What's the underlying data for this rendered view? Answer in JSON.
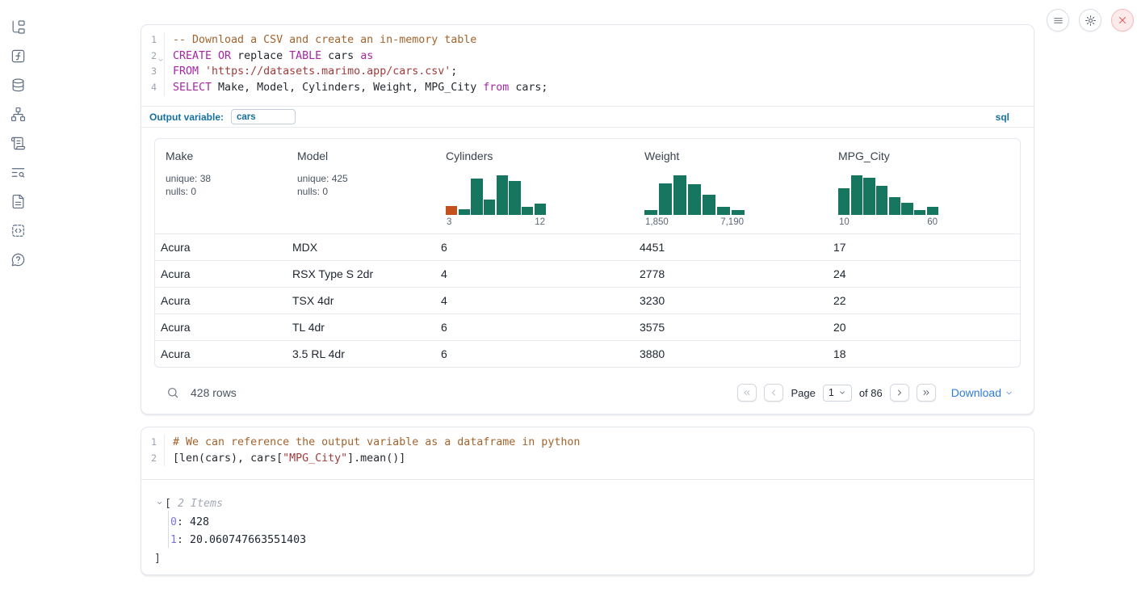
{
  "colors": {
    "keyword": "#a626a4",
    "comment": "#a5632c",
    "string": "#a33a3a",
    "accent_blue": "#15709f",
    "link_blue": "#2d7ce0",
    "hist_green": "#17765f",
    "hist_orange": "#c4511d"
  },
  "sidebar": {
    "icons": [
      "file-tree",
      "function-square",
      "database",
      "dependency-graph",
      "scratchpad",
      "logs-search",
      "documentation",
      "snippets",
      "help"
    ]
  },
  "topbar": {
    "icons": [
      "menu",
      "settings",
      "shutdown"
    ]
  },
  "cells": [
    {
      "type": "sql",
      "output_variable_label": "Output variable:",
      "output_variable_value": "cars",
      "language_badge": "sql",
      "lines": [
        {
          "no": "1",
          "fold": false,
          "tokens": [
            {
              "t": "-- Download a CSV and create an in-memory table",
              "c": "comment"
            }
          ]
        },
        {
          "no": "2",
          "fold": true,
          "tokens": [
            {
              "t": "CREATE OR",
              "c": "kw"
            },
            {
              "t": " replace ",
              "c": "plain"
            },
            {
              "t": "TABLE",
              "c": "kw"
            },
            {
              "t": " cars ",
              "c": "plain"
            },
            {
              "t": "as",
              "c": "kw"
            }
          ]
        },
        {
          "no": "3",
          "fold": false,
          "tokens": [
            {
              "t": "FROM",
              "c": "kw"
            },
            {
              "t": " ",
              "c": "plain"
            },
            {
              "t": "'https://datasets.marimo.app/cars.csv'",
              "c": "str"
            },
            {
              "t": ";",
              "c": "plain"
            }
          ]
        },
        {
          "no": "4",
          "fold": false,
          "tokens": [
            {
              "t": "SELECT",
              "c": "kw"
            },
            {
              "t": " Make, Model, Cylinders, Weight, MPG_City ",
              "c": "plain"
            },
            {
              "t": "from",
              "c": "kw"
            },
            {
              "t": " cars;",
              "c": "plain"
            }
          ]
        }
      ]
    },
    {
      "type": "python",
      "lines": [
        {
          "no": "1",
          "fold": false,
          "tokens": [
            {
              "t": "# We can reference the output variable as a dataframe in python",
              "c": "comment"
            }
          ]
        },
        {
          "no": "2",
          "fold": false,
          "tokens": [
            {
              "t": "[len(cars), cars[",
              "c": "plain"
            },
            {
              "t": "\"MPG_City\"",
              "c": "str"
            },
            {
              "t": "].mean()]",
              "c": "plain"
            }
          ]
        }
      ]
    }
  ],
  "table": {
    "columns": [
      {
        "label": "Make",
        "type": "text",
        "stats": [
          "unique: 38",
          "nulls: 0"
        ]
      },
      {
        "label": "Model",
        "type": "text",
        "stats": [
          "unique: 425",
          "nulls: 0"
        ]
      },
      {
        "label": "Cylinders",
        "type": "numeric",
        "histogram": {
          "min_label": "3",
          "max_label": "12",
          "bars": [
            0.21,
            0.13,
            0.84,
            0.36,
            0.92,
            0.79,
            0.18,
            0.26
          ],
          "bar_colors": [
            "#c4511d",
            "#17765f",
            "#17765f",
            "#17765f",
            "#17765f",
            "#17765f",
            "#17765f",
            "#17765f"
          ]
        }
      },
      {
        "label": "Weight",
        "type": "numeric",
        "histogram": {
          "min_label": "1,850",
          "max_label": "7,190",
          "bars": [
            0.12,
            0.73,
            0.92,
            0.71,
            0.48,
            0.19,
            0.12
          ],
          "bar_colors": [
            "#17765f",
            "#17765f",
            "#17765f",
            "#17765f",
            "#17765f",
            "#17765f",
            "#17765f"
          ]
        }
      },
      {
        "label": "MPG_City",
        "type": "numeric",
        "histogram": {
          "min_label": "10",
          "max_label": "60",
          "bars": [
            0.62,
            0.92,
            0.87,
            0.67,
            0.41,
            0.28,
            0.11,
            0.19
          ],
          "bar_colors": [
            "#17765f",
            "#17765f",
            "#17765f",
            "#17765f",
            "#17765f",
            "#17765f",
            "#17765f",
            "#17765f"
          ]
        }
      }
    ],
    "rows": [
      [
        "Acura",
        "MDX",
        "6",
        "4451",
        "17"
      ],
      [
        "Acura",
        "RSX Type S 2dr",
        "4",
        "2778",
        "24"
      ],
      [
        "Acura",
        "TSX 4dr",
        "4",
        "3230",
        "22"
      ],
      [
        "Acura",
        "TL 4dr",
        "6",
        "3575",
        "20"
      ],
      [
        "Acura",
        "3.5 RL 4dr",
        "6",
        "3880",
        "18"
      ]
    ],
    "footer": {
      "row_count": "428 rows",
      "page_label": "Page",
      "page_value": "1",
      "of_label": "of 86",
      "download_label": "Download"
    }
  },
  "output_panel": {
    "open_bracket": "[",
    "items_note": "2 Items",
    "items": [
      {
        "index": "0",
        "sep": ": ",
        "value": "428"
      },
      {
        "index": "1",
        "sep": ": ",
        "value": "20.060747663551403"
      }
    ],
    "close_bracket": "]"
  }
}
